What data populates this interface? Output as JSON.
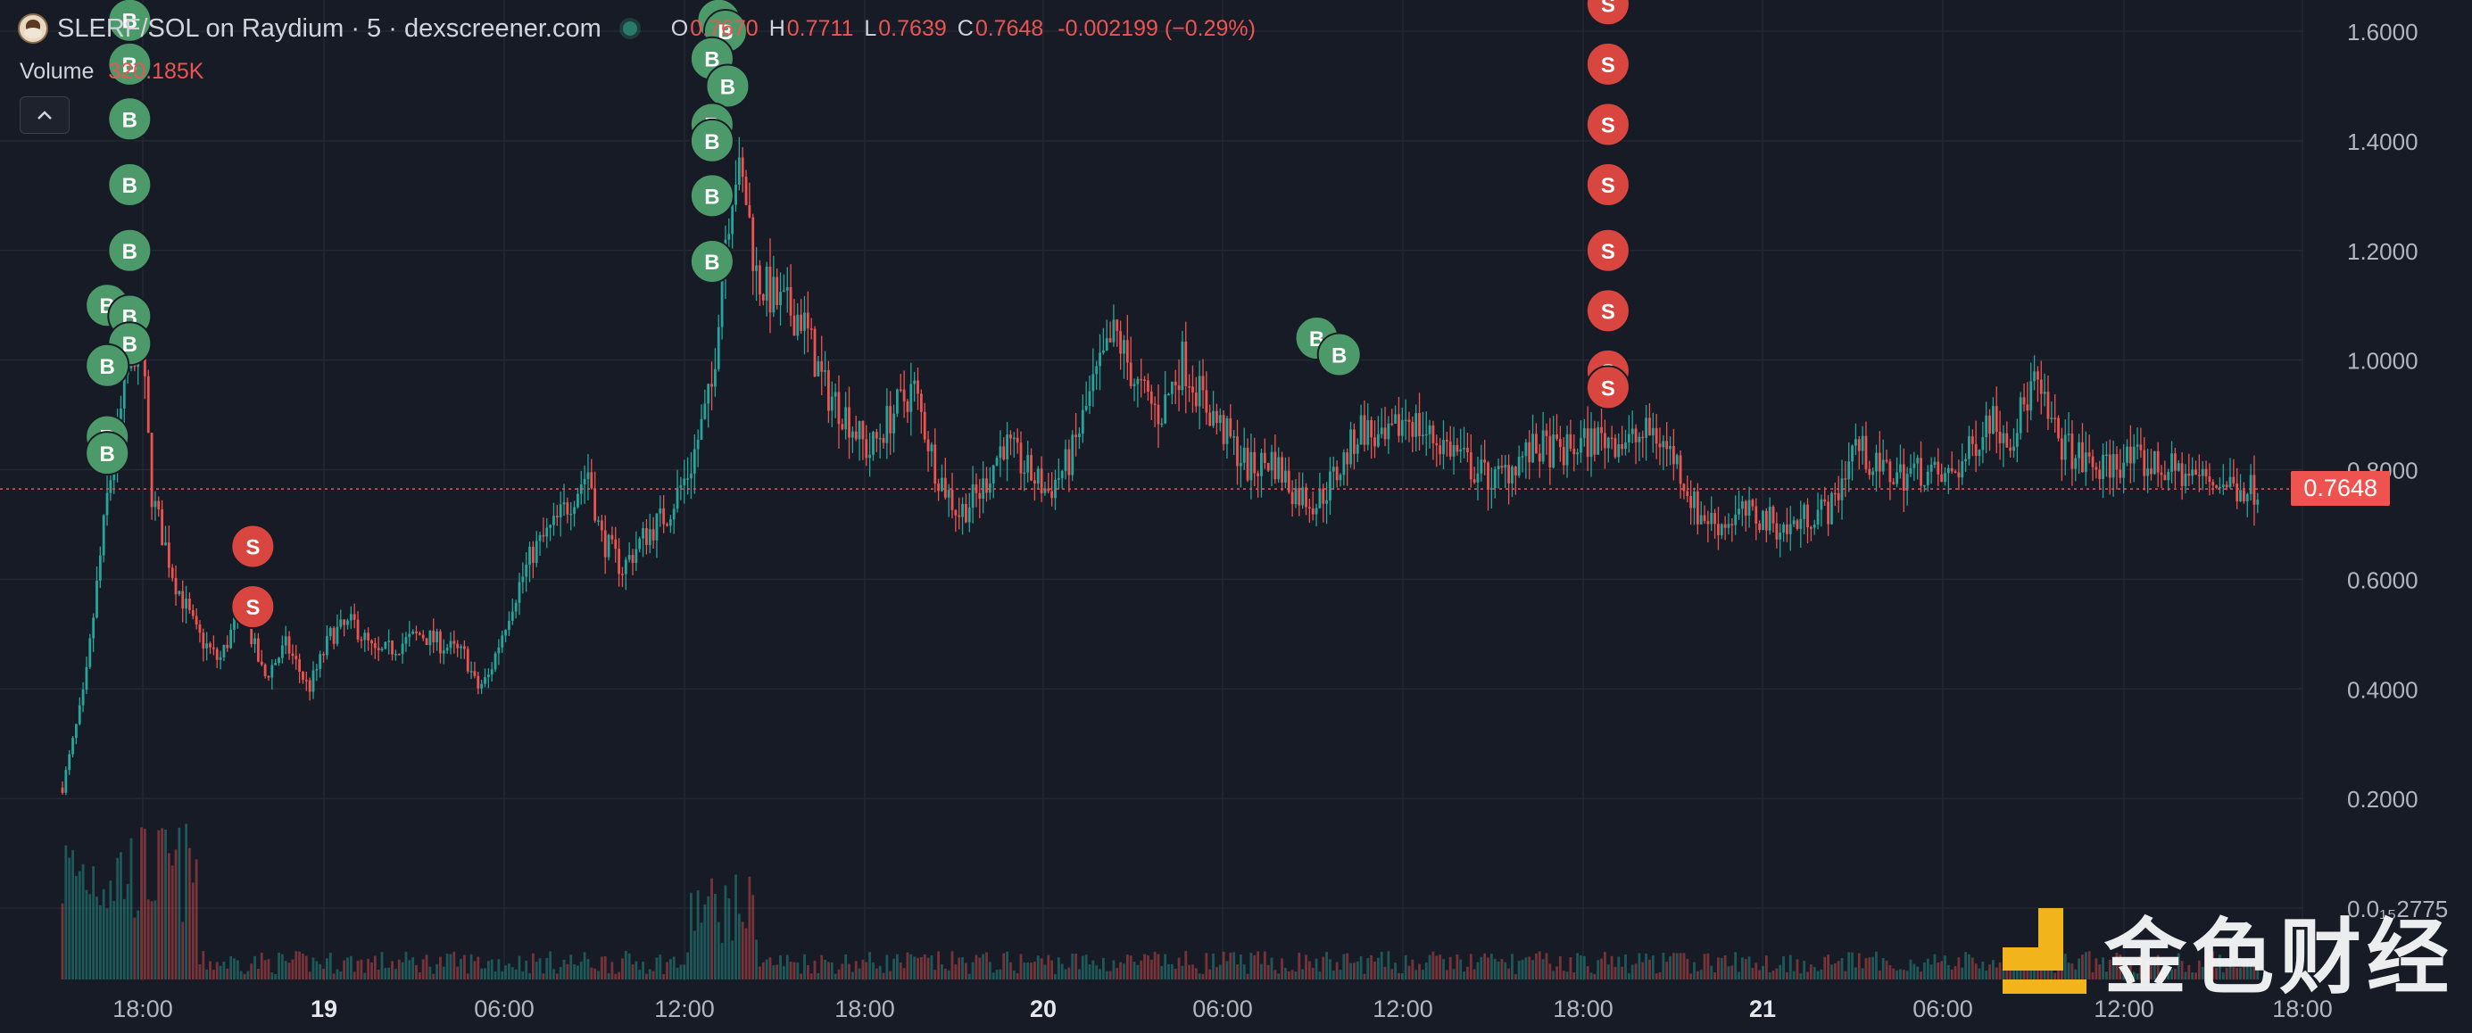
{
  "header": {
    "pair": "SLERF/SOL on Raydium · 5 · dexscreener.com",
    "ohlc": {
      "o_label": "O",
      "o": "0.7670",
      "h_label": "H",
      "h": "0.7711",
      "l_label": "L",
      "l": "0.7639",
      "c_label": "C",
      "c": "0.7648",
      "change": "-0.002199 (−0.29%)"
    },
    "volume_label": "Volume",
    "volume_value": "320.185K",
    "collapse_icon": "chevron-up-icon"
  },
  "current_price": "0.7648",
  "colors": {
    "background": "#171b26",
    "up": "#26a69a",
    "down": "#ef5350",
    "buy_marker": "#4c9a69",
    "sell_marker": "#d94640",
    "grid": "#242833",
    "axis_text": "#b2b5be"
  },
  "watermark": {
    "text": "金色财经",
    "logo": "jinse-logo"
  },
  "chart_data": {
    "type": "candlestick",
    "title": "SLERF/SOL on Raydium · 5 · dexscreener.com",
    "ylim": [
      0,
      1.65
    ],
    "y_ticks": [
      "1.6000",
      "1.4000",
      "1.2000",
      "1.0000",
      "0.8000",
      "0.6000",
      "0.4000",
      "0.2000",
      "0.0₁₅2775"
    ],
    "y_tick_values": [
      1.6,
      1.4,
      1.2,
      1.0,
      0.8,
      0.6,
      0.4,
      0.2,
      0.0
    ],
    "x_ticks": [
      {
        "label": "18:00",
        "bold": false
      },
      {
        "label": "19",
        "bold": true
      },
      {
        "label": "06:00",
        "bold": false
      },
      {
        "label": "12:00",
        "bold": false
      },
      {
        "label": "18:00",
        "bold": false
      },
      {
        "label": "20",
        "bold": true
      },
      {
        "label": "06:00",
        "bold": false
      },
      {
        "label": "12:00",
        "bold": false
      },
      {
        "label": "18:00",
        "bold": false
      },
      {
        "label": "21",
        "bold": true
      },
      {
        "label": "06:00",
        "bold": false
      },
      {
        "label": "12:00",
        "bold": false
      },
      {
        "label": "18:00",
        "bold": false
      }
    ],
    "grid": true,
    "last_price": 0.7648,
    "price_path": [
      [
        0.0,
        0.22
      ],
      [
        0.01,
        0.4
      ],
      [
        0.02,
        0.75
      ],
      [
        0.03,
        1.0
      ],
      [
        0.035,
        1.05
      ],
      [
        0.04,
        0.75
      ],
      [
        0.05,
        0.6
      ],
      [
        0.06,
        0.5
      ],
      [
        0.07,
        0.45
      ],
      [
        0.08,
        0.55
      ],
      [
        0.09,
        0.42
      ],
      [
        0.1,
        0.48
      ],
      [
        0.11,
        0.4
      ],
      [
        0.12,
        0.5
      ],
      [
        0.13,
        0.52
      ],
      [
        0.14,
        0.46
      ],
      [
        0.15,
        0.48
      ],
      [
        0.16,
        0.5
      ],
      [
        0.17,
        0.48
      ],
      [
        0.18,
        0.46
      ],
      [
        0.185,
        0.4
      ],
      [
        0.19,
        0.42
      ],
      [
        0.2,
        0.55
      ],
      [
        0.21,
        0.65
      ],
      [
        0.22,
        0.7
      ],
      [
        0.235,
        0.8
      ],
      [
        0.24,
        0.68
      ],
      [
        0.25,
        0.62
      ],
      [
        0.26,
        0.68
      ],
      [
        0.27,
        0.72
      ],
      [
        0.28,
        0.8
      ],
      [
        0.29,
        0.95
      ],
      [
        0.295,
        1.2
      ],
      [
        0.3,
        1.35
      ],
      [
        0.305,
        1.3
      ],
      [
        0.31,
        1.15
      ],
      [
        0.32,
        1.1
      ],
      [
        0.33,
        1.08
      ],
      [
        0.34,
        0.95
      ],
      [
        0.35,
        0.9
      ],
      [
        0.36,
        0.83
      ],
      [
        0.37,
        0.9
      ],
      [
        0.38,
        0.95
      ],
      [
        0.39,
        0.8
      ],
      [
        0.4,
        0.72
      ],
      [
        0.41,
        0.76
      ],
      [
        0.42,
        0.85
      ],
      [
        0.43,
        0.8
      ],
      [
        0.44,
        0.76
      ],
      [
        0.45,
        0.82
      ],
      [
        0.46,
        0.95
      ],
      [
        0.47,
        1.05
      ],
      [
        0.48,
        0.95
      ],
      [
        0.49,
        0.9
      ],
      [
        0.5,
        1.0
      ],
      [
        0.51,
        0.92
      ],
      [
        0.52,
        0.86
      ],
      [
        0.53,
        0.8
      ],
      [
        0.54,
        0.82
      ],
      [
        0.55,
        0.76
      ],
      [
        0.56,
        0.74
      ],
      [
        0.57,
        0.8
      ],
      [
        0.58,
        0.88
      ],
      [
        0.59,
        0.84
      ],
      [
        0.6,
        0.9
      ],
      [
        0.61,
        0.86
      ],
      [
        0.62,
        0.84
      ],
      [
        0.63,
        0.8
      ],
      [
        0.64,
        0.78
      ],
      [
        0.65,
        0.82
      ],
      [
        0.66,
        0.84
      ],
      [
        0.67,
        0.83
      ],
      [
        0.68,
        0.85
      ],
      [
        0.69,
        0.86
      ],
      [
        0.7,
        0.85
      ],
      [
        0.71,
        0.87
      ],
      [
        0.72,
        0.82
      ],
      [
        0.73,
        0.72
      ],
      [
        0.74,
        0.7
      ],
      [
        0.75,
        0.72
      ],
      [
        0.76,
        0.71
      ],
      [
        0.77,
        0.69
      ],
      [
        0.78,
        0.72
      ],
      [
        0.79,
        0.73
      ],
      [
        0.8,
        0.85
      ],
      [
        0.81,
        0.8
      ],
      [
        0.82,
        0.79
      ],
      [
        0.83,
        0.8
      ],
      [
        0.84,
        0.78
      ],
      [
        0.85,
        0.82
      ],
      [
        0.86,
        0.9
      ],
      [
        0.87,
        0.86
      ],
      [
        0.88,
        0.96
      ],
      [
        0.89,
        0.86
      ],
      [
        0.9,
        0.82
      ],
      [
        0.91,
        0.8
      ],
      [
        0.92,
        0.82
      ],
      [
        0.93,
        0.81
      ],
      [
        0.94,
        0.8
      ],
      [
        0.95,
        0.79
      ],
      [
        0.96,
        0.78
      ],
      [
        0.97,
        0.77
      ],
      [
        0.98,
        0.765
      ]
    ],
    "buy_markers": [
      [
        0.03,
        1.62
      ],
      [
        0.03,
        1.54
      ],
      [
        0.03,
        1.44
      ],
      [
        0.03,
        1.32
      ],
      [
        0.03,
        1.2
      ],
      [
        0.02,
        1.1
      ],
      [
        0.03,
        1.08
      ],
      [
        0.03,
        1.03
      ],
      [
        0.02,
        0.99
      ],
      [
        0.02,
        0.86
      ],
      [
        0.02,
        0.83
      ],
      [
        0.293,
        1.62
      ],
      [
        0.296,
        1.6
      ],
      [
        0.29,
        1.55
      ],
      [
        0.297,
        1.5
      ],
      [
        0.29,
        1.43
      ],
      [
        0.29,
        1.4
      ],
      [
        0.29,
        1.3
      ],
      [
        0.29,
        1.18
      ],
      [
        0.56,
        1.04
      ],
      [
        0.57,
        1.01
      ]
    ],
    "sell_markers": [
      [
        0.085,
        0.66
      ],
      [
        0.085,
        0.55
      ],
      [
        0.69,
        1.65
      ],
      [
        0.69,
        1.54
      ],
      [
        0.69,
        1.43
      ],
      [
        0.69,
        1.32
      ],
      [
        0.69,
        1.2
      ],
      [
        0.69,
        1.09
      ],
      [
        0.69,
        0.98
      ],
      [
        0.69,
        0.95
      ]
    ]
  }
}
